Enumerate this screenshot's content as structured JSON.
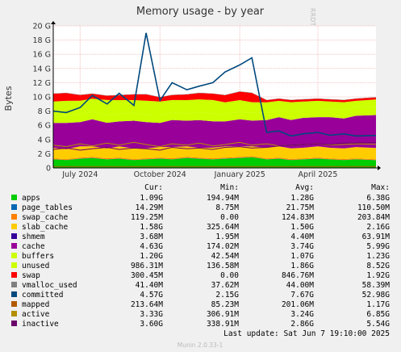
{
  "side_label": "RRDTOOL / TOBI OETIKER",
  "footer": "Munin 2.0.33-1",
  "legend_headers": {
    "cur": "Cur:",
    "min": "Min:",
    "avg": "Avg:",
    "max": "Max:"
  },
  "last_update": "Last update:  Sat Jun  7 19:10:00 2025",
  "legend": [
    {
      "name": "apps",
      "color": "#00cc00",
      "cur": "1.09G",
      "min": "194.94M",
      "avg": "1.28G",
      "max": "6.38G"
    },
    {
      "name": "page_tables",
      "color": "#0066b3",
      "cur": "14.29M",
      "min": "8.75M",
      "avg": "21.75M",
      "max": "110.50M"
    },
    {
      "name": "swap_cache",
      "color": "#ff8000",
      "cur": "119.25M",
      "min": "0.00",
      "avg": "124.83M",
      "max": "203.84M"
    },
    {
      "name": "slab_cache",
      "color": "#ffcc00",
      "cur": "1.58G",
      "min": "325.64M",
      "avg": "1.50G",
      "max": "2.16G"
    },
    {
      "name": "shmem",
      "color": "#330099",
      "cur": "3.68M",
      "min": "1.95M",
      "avg": "4.40M",
      "max": "63.91M"
    },
    {
      "name": "cache",
      "color": "#990099",
      "cur": "4.63G",
      "min": "174.02M",
      "avg": "3.74G",
      "max": "5.99G"
    },
    {
      "name": "buffers",
      "color": "#ccff00",
      "cur": "1.20G",
      "min": "42.54M",
      "avg": "1.07G",
      "max": "1.23G"
    },
    {
      "name": "unused",
      "color": "#ccff00",
      "cur": "986.31M",
      "min": "136.58M",
      "avg": "1.86G",
      "max": "8.52G"
    },
    {
      "name": "swap",
      "color": "#ff0000",
      "cur": "300.45M",
      "min": "0.00",
      "avg": "846.76M",
      "max": "1.92G"
    },
    {
      "name": "vmalloc_used",
      "color": "#808080",
      "cur": "41.40M",
      "min": "37.62M",
      "avg": "44.00M",
      "max": "58.39M"
    },
    {
      "name": "committed",
      "color": "#00487d",
      "cur": "4.57G",
      "min": "2.15G",
      "avg": "7.67G",
      "max": "52.98G"
    },
    {
      "name": "mapped",
      "color": "#b35a00",
      "cur": "213.64M",
      "min": "85.23M",
      "avg": "201.06M",
      "max": "1.17G"
    },
    {
      "name": "active",
      "color": "#b38f00",
      "cur": "3.33G",
      "min": "306.91M",
      "avg": "3.24G",
      "max": "6.85G"
    },
    {
      "name": "inactive",
      "color": "#6b006b",
      "cur": "3.60G",
      "min": "338.91M",
      "avg": "2.86G",
      "max": "5.54G"
    }
  ],
  "chart_data": {
    "type": "area",
    "title": "Memory usage - by year",
    "ylabel": "Bytes",
    "ylim": [
      0,
      20
    ],
    "y_unit": "G",
    "y_ticks": [
      0,
      2,
      4,
      6,
      8,
      10,
      12,
      14,
      16,
      18,
      20
    ],
    "y_tick_labels": [
      "0",
      "2 G",
      "4 G",
      "6 G",
      "8 G",
      "10 G",
      "12 G",
      "14 G",
      "16 G",
      "18 G",
      "20 G"
    ],
    "x_range": [
      "2024-05-31",
      "2025-06-07"
    ],
    "x_ticks": [
      {
        "date": "2024-07-01",
        "label": "July 2024"
      },
      {
        "date": "2024-10-01",
        "label": "October 2024"
      },
      {
        "date": "2025-01-01",
        "label": "January 2025"
      },
      {
        "date": "2025-04-01",
        "label": "April 2025"
      }
    ],
    "grid": true,
    "x": [
      "2024-05-31",
      "2024-06-15",
      "2024-07-01",
      "2024-07-15",
      "2024-08-01",
      "2024-08-15",
      "2024-09-01",
      "2024-09-15",
      "2024-10-01",
      "2024-10-15",
      "2024-11-01",
      "2024-11-15",
      "2024-12-01",
      "2024-12-15",
      "2025-01-01",
      "2025-01-15",
      "2025-02-01",
      "2025-02-15",
      "2025-03-01",
      "2025-03-15",
      "2025-04-01",
      "2025-04-15",
      "2025-05-01",
      "2025-05-15",
      "2025-06-07"
    ],
    "stacked_series": [
      {
        "name": "apps",
        "color": "#00cc00",
        "values": [
          1.2,
          1.1,
          1.3,
          1.4,
          1.2,
          1.3,
          1.1,
          1.2,
          1.3,
          1.2,
          1.4,
          1.3,
          1.2,
          1.3,
          1.4,
          1.5,
          1.2,
          1.3,
          1.1,
          1.2,
          1.3,
          1.2,
          1.1,
          1.2,
          1.09
        ]
      },
      {
        "name": "page_tables",
        "color": "#0066b3",
        "values": [
          0.02,
          0.02,
          0.02,
          0.02,
          0.02,
          0.02,
          0.02,
          0.02,
          0.02,
          0.02,
          0.02,
          0.02,
          0.02,
          0.02,
          0.02,
          0.02,
          0.02,
          0.02,
          0.02,
          0.02,
          0.02,
          0.02,
          0.02,
          0.02,
          0.014
        ]
      },
      {
        "name": "swap_cache",
        "color": "#ff8000",
        "values": [
          0.12,
          0.12,
          0.13,
          0.12,
          0.13,
          0.12,
          0.12,
          0.13,
          0.12,
          0.13,
          0.12,
          0.12,
          0.13,
          0.12,
          0.12,
          0.13,
          0.12,
          0.12,
          0.13,
          0.12,
          0.12,
          0.12,
          0.13,
          0.12,
          0.12
        ]
      },
      {
        "name": "slab_cache",
        "color": "#ffcc00",
        "values": [
          1.5,
          1.4,
          1.6,
          1.5,
          1.4,
          1.6,
          1.5,
          1.4,
          1.5,
          1.6,
          1.5,
          1.4,
          1.5,
          1.6,
          1.5,
          1.4,
          1.5,
          1.6,
          1.5,
          1.5,
          1.6,
          1.5,
          1.5,
          1.6,
          1.58
        ]
      },
      {
        "name": "shmem",
        "color": "#330099",
        "values": [
          0.004,
          0.004,
          0.004,
          0.004,
          0.004,
          0.004,
          0.004,
          0.004,
          0.004,
          0.004,
          0.004,
          0.004,
          0.004,
          0.004,
          0.004,
          0.004,
          0.004,
          0.004,
          0.004,
          0.004,
          0.004,
          0.004,
          0.004,
          0.004,
          0.004
        ]
      },
      {
        "name": "cache",
        "color": "#990099",
        "values": [
          3.5,
          3.7,
          3.4,
          3.8,
          3.6,
          3.5,
          3.9,
          3.7,
          3.4,
          3.8,
          3.6,
          3.9,
          3.7,
          3.5,
          3.8,
          3.6,
          3.9,
          4.1,
          4.0,
          4.2,
          4.1,
          4.3,
          4.2,
          4.4,
          4.63
        ]
      },
      {
        "name": "buffers",
        "color": "#ccff00",
        "values": [
          1.0,
          1.0,
          1.1,
          1.1,
          1.0,
          1.1,
          1.1,
          1.0,
          1.1,
          1.1,
          1.0,
          1.1,
          1.1,
          1.0,
          1.1,
          1.1,
          1.1,
          1.1,
          1.2,
          1.2,
          1.1,
          1.2,
          1.2,
          1.2,
          1.2
        ]
      },
      {
        "name": "unused",
        "color": "#ccff00",
        "values": [
          2.0,
          2.1,
          1.9,
          1.8,
          2.2,
          1.9,
          1.8,
          2.0,
          1.9,
          1.7,
          1.9,
          1.8,
          1.9,
          1.7,
          1.6,
          1.5,
          1.4,
          1.2,
          1.3,
          1.1,
          1.2,
          1.0,
          1.1,
          0.9,
          0.99
        ]
      },
      {
        "name": "swap",
        "color": "#ff0000",
        "values": [
          1.1,
          1.1,
          0.8,
          0.7,
          0.6,
          0.7,
          0.8,
          0.9,
          0.6,
          0.7,
          0.8,
          0.9,
          0.9,
          1.0,
          1.2,
          1.3,
          0.3,
          0.3,
          0.3,
          0.3,
          0.3,
          0.3,
          0.3,
          0.3,
          0.3
        ]
      },
      {
        "name": "vmalloc_used",
        "color": "#808080",
        "values": [
          0.04,
          0.04,
          0.04,
          0.04,
          0.04,
          0.04,
          0.04,
          0.04,
          0.04,
          0.04,
          0.04,
          0.04,
          0.04,
          0.04,
          0.04,
          0.04,
          0.04,
          0.04,
          0.04,
          0.04,
          0.04,
          0.04,
          0.04,
          0.04,
          0.04
        ]
      }
    ],
    "line_series": [
      {
        "name": "committed",
        "color": "#00487d",
        "values": [
          8.0,
          7.8,
          8.5,
          10.2,
          9.0,
          10.5,
          8.8,
          19.0,
          9.5,
          12.0,
          11.0,
          11.5,
          12.0,
          13.5,
          14.5,
          15.5,
          5.0,
          5.2,
          4.5,
          4.8,
          5.0,
          4.6,
          4.8,
          4.5,
          4.57
        ]
      },
      {
        "name": "mapped",
        "color": "#b35a00",
        "values": [
          0.2,
          0.2,
          0.2,
          0.2,
          0.2,
          0.2,
          0.2,
          0.2,
          0.2,
          0.2,
          0.2,
          0.2,
          0.2,
          0.2,
          0.2,
          0.2,
          0.2,
          0.2,
          0.2,
          0.2,
          0.2,
          0.2,
          0.2,
          0.2,
          0.21
        ]
      },
      {
        "name": "active",
        "color": "#b38f00",
        "values": [
          3.2,
          3.0,
          3.4,
          3.1,
          3.5,
          3.2,
          3.6,
          3.3,
          3.0,
          3.4,
          3.2,
          3.5,
          3.1,
          3.3,
          3.6,
          3.2,
          3.4,
          3.1,
          3.2,
          3.3,
          3.4,
          3.2,
          3.3,
          3.4,
          3.33
        ]
      },
      {
        "name": "inactive",
        "color": "#6b006b",
        "values": [
          2.6,
          2.8,
          2.5,
          2.7,
          2.9,
          2.6,
          2.8,
          2.7,
          2.5,
          2.9,
          2.7,
          2.8,
          2.6,
          2.9,
          3.0,
          2.8,
          2.9,
          3.1,
          3.2,
          3.3,
          3.4,
          3.3,
          3.5,
          3.5,
          3.6
        ]
      }
    ]
  }
}
